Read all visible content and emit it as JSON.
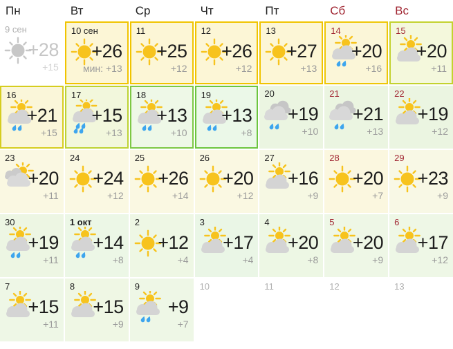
{
  "calendar": {
    "weekdays": [
      {
        "label": "Пн",
        "color": "#222222"
      },
      {
        "label": "Вт",
        "color": "#222222"
      },
      {
        "label": "Ср",
        "color": "#222222"
      },
      {
        "label": "Чт",
        "color": "#222222"
      },
      {
        "label": "Пт",
        "color": "#222222"
      },
      {
        "label": "Сб",
        "color": "#a12733"
      },
      {
        "label": "Вс",
        "color": "#a12733"
      }
    ],
    "colors": {
      "text": "#222222",
      "weekend_red": "#a12733",
      "muted_gray": "#b0b0b0",
      "low_temp_gray": "#9a9a9a",
      "sun": "#f7c31d",
      "sun_gray": "#c7c7c7",
      "cloud": "#d4d4d4",
      "rain": "#3da5ee"
    },
    "cells": [
      {
        "date": "9 сен",
        "date_style": "muted",
        "icon": "sun-gray",
        "high": "+28",
        "low": "+15",
        "muted": true,
        "bg": "",
        "border": ""
      },
      {
        "date": "10 сен",
        "date_style": "normal",
        "icon": "sun",
        "high": "+26",
        "low": "мин: +13",
        "bg": "#fcf6d6",
        "border": "#f0c400"
      },
      {
        "date": "11",
        "date_style": "normal",
        "icon": "sun",
        "high": "+25",
        "low": "+12",
        "bg": "#fcf6d6",
        "border": "#f0c400"
      },
      {
        "date": "12",
        "date_style": "normal",
        "icon": "sun",
        "high": "+26",
        "low": "+12",
        "bg": "#fcf6d6",
        "border": "#f0c400"
      },
      {
        "date": "13",
        "date_style": "normal",
        "icon": "sun",
        "high": "+27",
        "low": "+13",
        "bg": "#fcf6d6",
        "border": "#f0c400"
      },
      {
        "date": "14",
        "date_style": "red",
        "icon": "sun-cloud-rain",
        "high": "+20",
        "low": "+16",
        "bg": "#fbf6d8",
        "border": "#eec708"
      },
      {
        "date": "15",
        "date_style": "red",
        "icon": "sun-cloud",
        "high": "+20",
        "low": "+11",
        "bg": "#f4f8dc",
        "border": "#c3d22e"
      },
      {
        "date": "16",
        "date_style": "normal",
        "icon": "sun-cloud-rain",
        "high": "+21",
        "low": "+15",
        "bg": "#faf6d9",
        "border": "#d6cd1f"
      },
      {
        "date": "17",
        "date_style": "normal",
        "icon": "sun-cloud-rain4",
        "high": "+15",
        "low": "+13",
        "bg": "#f2f7dc",
        "border": "#bdd232"
      },
      {
        "date": "18",
        "date_style": "normal",
        "icon": "sun-cloud-rain",
        "high": "+13",
        "low": "+10",
        "bg": "#eef8e7",
        "border": "#7dc845"
      },
      {
        "date": "19",
        "date_style": "normal",
        "icon": "sun-cloud-rain",
        "high": "+13",
        "low": "+8",
        "bg": "#ebf8e8",
        "border": "#6cc53e"
      },
      {
        "date": "20",
        "date_style": "normal",
        "icon": "clouds-rain",
        "high": "+19",
        "low": "+10",
        "bg": "#ebf5e1",
        "border": ""
      },
      {
        "date": "21",
        "date_style": "red",
        "icon": "clouds-rain",
        "high": "+21",
        "low": "+13",
        "bg": "#ebf5e1",
        "border": ""
      },
      {
        "date": "22",
        "date_style": "red",
        "icon": "sun-cloud",
        "high": "+19",
        "low": "+12",
        "bg": "#ebf5e1",
        "border": ""
      },
      {
        "date": "23",
        "date_style": "normal",
        "icon": "clouds-sun",
        "high": "+20",
        "low": "+11",
        "bg": "#faf8e2",
        "border": ""
      },
      {
        "date": "24",
        "date_style": "normal",
        "icon": "sun",
        "high": "+24",
        "low": "+12",
        "bg": "#faf8e2",
        "border": ""
      },
      {
        "date": "25",
        "date_style": "normal",
        "icon": "sun",
        "high": "+26",
        "low": "+14",
        "bg": "#faf8e2",
        "border": ""
      },
      {
        "date": "26",
        "date_style": "normal",
        "icon": "sun",
        "high": "+20",
        "low": "+12",
        "bg": "#faf8e2",
        "border": ""
      },
      {
        "date": "27",
        "date_style": "normal",
        "icon": "sun-cloud",
        "high": "+16",
        "low": "+9",
        "bg": "#f6f8e3",
        "border": ""
      },
      {
        "date": "28",
        "date_style": "red",
        "icon": "sun",
        "high": "+20",
        "low": "+7",
        "bg": "#fbf7df",
        "border": ""
      },
      {
        "date": "29",
        "date_style": "red",
        "icon": "sun",
        "high": "+23",
        "low": "+9",
        "bg": "#f8f8e5",
        "border": ""
      },
      {
        "date": "30",
        "date_style": "normal",
        "icon": "sun-cloud-rain",
        "high": "+19",
        "low": "+11",
        "bg": "#edf6e3",
        "border": ""
      },
      {
        "date": "1 окт",
        "date_style": "bold",
        "icon": "sun-cloud-rain",
        "high": "+14",
        "low": "+8",
        "bg": "#ecf7e6",
        "border": ""
      },
      {
        "date": "2",
        "date_style": "normal",
        "icon": "sun",
        "high": "+12",
        "low": "+4",
        "bg": "#eef7e4",
        "border": ""
      },
      {
        "date": "3",
        "date_style": "normal",
        "icon": "sun-cloud",
        "high": "+17",
        "low": "+4",
        "bg": "#eaf6e6",
        "border": ""
      },
      {
        "date": "4",
        "date_style": "normal",
        "icon": "sun-cloud",
        "high": "+20",
        "low": "+8",
        "bg": "#edf7e4",
        "border": ""
      },
      {
        "date": "5",
        "date_style": "red",
        "icon": "sun-cloud",
        "high": "+20",
        "low": "+9",
        "bg": "#eef7e6",
        "border": ""
      },
      {
        "date": "6",
        "date_style": "red",
        "icon": "sun-cloud",
        "high": "+17",
        "low": "+12",
        "bg": "#eef7e6",
        "border": ""
      },
      {
        "date": "7",
        "date_style": "normal",
        "icon": "sun-cloud",
        "high": "+15",
        "low": "+11",
        "bg": "#eef7e6",
        "border": ""
      },
      {
        "date": "8",
        "date_style": "normal",
        "icon": "sun-cloud",
        "high": "+15",
        "low": "+9",
        "bg": "#eff7e4",
        "border": ""
      },
      {
        "date": "9",
        "date_style": "normal",
        "icon": "sun-cloud-rain",
        "high": "+9",
        "low": "+7",
        "bg": "#eef7e6",
        "border": ""
      },
      {
        "date": "10",
        "date_style": "muted",
        "icon": "",
        "high": "",
        "low": "",
        "bg": "",
        "border": ""
      },
      {
        "date": "11",
        "date_style": "muted",
        "icon": "",
        "high": "",
        "low": "",
        "bg": "",
        "border": ""
      },
      {
        "date": "12",
        "date_style": "muted",
        "icon": "",
        "high": "",
        "low": "",
        "bg": "",
        "border": ""
      },
      {
        "date": "13",
        "date_style": "muted",
        "icon": "",
        "high": "",
        "low": "",
        "bg": "",
        "border": ""
      }
    ]
  }
}
